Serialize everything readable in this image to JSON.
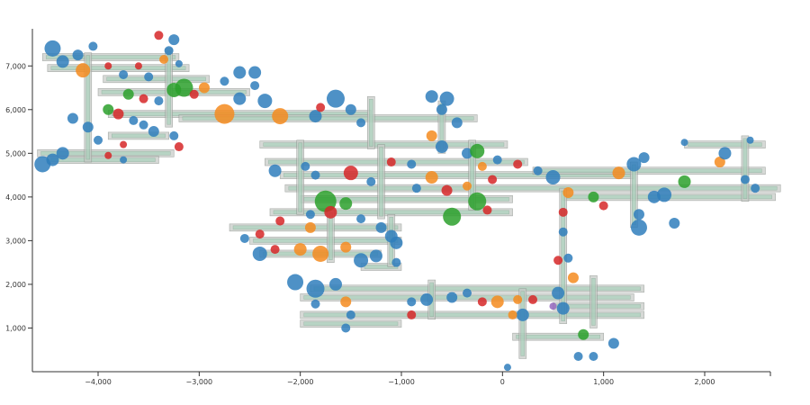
{
  "chart_data": {
    "type": "scatter",
    "title": "",
    "xlabel": "",
    "ylabel": "",
    "xlim": [
      -4650,
      2650
    ],
    "ylim": [
      0,
      7850
    ],
    "x_ticks": [
      {
        "value": -4000,
        "label": "−4,000"
      },
      {
        "value": -3000,
        "label": "−3,000"
      },
      {
        "value": -2000,
        "label": "−2,000"
      },
      {
        "value": -1000,
        "label": "−1,000"
      },
      {
        "value": 0,
        "label": "0"
      },
      {
        "value": 1000,
        "label": "1,000"
      },
      {
        "value": 2000,
        "label": "2,000"
      }
    ],
    "y_ticks": [
      {
        "value": 1000,
        "label": "1,000"
      },
      {
        "value": 2000,
        "label": "2,000"
      },
      {
        "value": 3000,
        "label": "3,000"
      },
      {
        "value": 4000,
        "label": "4,000"
      },
      {
        "value": 5000,
        "label": "5,000"
      },
      {
        "value": 6000,
        "label": "6,000"
      },
      {
        "value": 7000,
        "label": "7,000"
      }
    ],
    "grid": false,
    "colors": {
      "blue": "#2f7ebc",
      "orange": "#f58b1f",
      "green": "#2ca02c",
      "red": "#d62728",
      "purple": "#9467bd"
    },
    "network_segments": [
      {
        "x1": -4550,
        "x2": -3200,
        "y": 7200
      },
      {
        "x1": -4500,
        "x2": -3100,
        "y": 6950
      },
      {
        "x1": -3950,
        "x2": -2900,
        "y": 6700
      },
      {
        "x1": -4000,
        "x2": -2500,
        "y": 6400
      },
      {
        "x1": -3900,
        "x2": -1300,
        "y": 5900
      },
      {
        "x1": -3200,
        "x2": -250,
        "y": 5800
      },
      {
        "x1": -3900,
        "x2": -3300,
        "y": 5400
      },
      {
        "x1": -4600,
        "x2": -3250,
        "y": 5000
      },
      {
        "x1": -4500,
        "x2": -3400,
        "y": 4850
      },
      {
        "x1": -2400,
        "x2": 50,
        "y": 5200
      },
      {
        "x1": -2350,
        "x2": 250,
        "y": 4800
      },
      {
        "x1": -2200,
        "x2": 1300,
        "y": 4500
      },
      {
        "x1": -2150,
        "x2": 2750,
        "y": 4200
      },
      {
        "x1": -2000,
        "x2": 100,
        "y": 3950
      },
      {
        "x1": -2300,
        "x2": 100,
        "y": 3650
      },
      {
        "x1": -2700,
        "x2": -1000,
        "y": 3300
      },
      {
        "x1": -2500,
        "x2": -1000,
        "y": 3000
      },
      {
        "x1": -2400,
        "x2": -1200,
        "y": 2700
      },
      {
        "x1": -1400,
        "x2": -1000,
        "y": 2400
      },
      {
        "x1": -1900,
        "x2": 1400,
        "y": 1900
      },
      {
        "x1": -2000,
        "x2": 1300,
        "y": 1700
      },
      {
        "x1": -2000,
        "x2": 1400,
        "y": 1300
      },
      {
        "x1": -2000,
        "x2": -1000,
        "y": 1100
      },
      {
        "x1": 300,
        "x2": 2600,
        "y": 4600
      },
      {
        "x1": 600,
        "x2": 2700,
        "y": 4000
      },
      {
        "x1": 1800,
        "x2": 2600,
        "y": 5200
      },
      {
        "x1": 500,
        "x2": 1400,
        "y": 1500
      },
      {
        "x1": 100,
        "x2": 1000,
        "y": 800
      }
    ],
    "network_verticals": [
      {
        "x": -4100,
        "y1": 4800,
        "y2": 7300
      },
      {
        "x": -3300,
        "y1": 5600,
        "y2": 7400
      },
      {
        "x": -1300,
        "y1": 5100,
        "y2": 6300
      },
      {
        "x": -600,
        "y1": 5000,
        "y2": 6200
      },
      {
        "x": -2000,
        "y1": 3600,
        "y2": 5300
      },
      {
        "x": -1200,
        "y1": 3500,
        "y2": 5200
      },
      {
        "x": -300,
        "y1": 3700,
        "y2": 5300
      },
      {
        "x": -1700,
        "y1": 2500,
        "y2": 3700
      },
      {
        "x": -1100,
        "y1": 2400,
        "y2": 3600
      },
      {
        "x": -700,
        "y1": 1200,
        "y2": 2100
      },
      {
        "x": 200,
        "y1": 300,
        "y2": 1900
      },
      {
        "x": 600,
        "y1": 1100,
        "y2": 4200
      },
      {
        "x": 900,
        "y1": 1000,
        "y2": 2200
      },
      {
        "x": 1300,
        "y1": 3300,
        "y2": 4800
      },
      {
        "x": 2400,
        "y1": 3900,
        "y2": 5400
      }
    ],
    "points": [
      {
        "x": -4450,
        "y": 7400,
        "r": 9,
        "c": "blue"
      },
      {
        "x": -4350,
        "y": 7100,
        "r": 7,
        "c": "blue"
      },
      {
        "x": -4200,
        "y": 7250,
        "r": 6,
        "c": "blue"
      },
      {
        "x": -4050,
        "y": 7450,
        "r": 5,
        "c": "blue"
      },
      {
        "x": -4150,
        "y": 6900,
        "r": 8,
        "c": "orange"
      },
      {
        "x": -3900,
        "y": 7000,
        "r": 4,
        "c": "red"
      },
      {
        "x": -3750,
        "y": 6800,
        "r": 5,
        "c": "blue"
      },
      {
        "x": -3600,
        "y": 7000,
        "r": 4,
        "c": "red"
      },
      {
        "x": -3500,
        "y": 6750,
        "r": 5,
        "c": "blue"
      },
      {
        "x": -3350,
        "y": 7150,
        "r": 5,
        "c": "orange"
      },
      {
        "x": -3400,
        "y": 7700,
        "r": 5,
        "c": "red"
      },
      {
        "x": -3250,
        "y": 7600,
        "r": 6,
        "c": "blue"
      },
      {
        "x": -3300,
        "y": 7350,
        "r": 5,
        "c": "blue"
      },
      {
        "x": -3200,
        "y": 7050,
        "r": 4,
        "c": "blue"
      },
      {
        "x": -3150,
        "y": 6500,
        "r": 10,
        "c": "green"
      },
      {
        "x": -3250,
        "y": 6450,
        "r": 8,
        "c": "green"
      },
      {
        "x": -3050,
        "y": 6350,
        "r": 5,
        "c": "red"
      },
      {
        "x": -2950,
        "y": 6500,
        "r": 6,
        "c": "orange"
      },
      {
        "x": -2750,
        "y": 6650,
        "r": 5,
        "c": "blue"
      },
      {
        "x": -2600,
        "y": 6850,
        "r": 7,
        "c": "blue"
      },
      {
        "x": -2450,
        "y": 6850,
        "r": 7,
        "c": "blue"
      },
      {
        "x": -2450,
        "y": 6550,
        "r": 5,
        "c": "blue"
      },
      {
        "x": -2600,
        "y": 6250,
        "r": 7,
        "c": "blue"
      },
      {
        "x": -2350,
        "y": 6200,
        "r": 8,
        "c": "blue"
      },
      {
        "x": -3700,
        "y": 6350,
        "r": 6,
        "c": "green"
      },
      {
        "x": -3550,
        "y": 6250,
        "r": 5,
        "c": "red"
      },
      {
        "x": -3400,
        "y": 6200,
        "r": 5,
        "c": "blue"
      },
      {
        "x": -3900,
        "y": 6000,
        "r": 6,
        "c": "green"
      },
      {
        "x": -3800,
        "y": 5900,
        "r": 6,
        "c": "red"
      },
      {
        "x": -3650,
        "y": 5750,
        "r": 5,
        "c": "blue"
      },
      {
        "x": -3550,
        "y": 5650,
        "r": 5,
        "c": "blue"
      },
      {
        "x": -3450,
        "y": 5500,
        "r": 6,
        "c": "blue"
      },
      {
        "x": -3250,
        "y": 5400,
        "r": 5,
        "c": "blue"
      },
      {
        "x": -3200,
        "y": 5150,
        "r": 5,
        "c": "red"
      },
      {
        "x": -4250,
        "y": 5800,
        "r": 6,
        "c": "blue"
      },
      {
        "x": -4100,
        "y": 5600,
        "r": 6,
        "c": "blue"
      },
      {
        "x": -4000,
        "y": 5300,
        "r": 5,
        "c": "blue"
      },
      {
        "x": -3750,
        "y": 5200,
        "r": 4,
        "c": "red"
      },
      {
        "x": -4550,
        "y": 4750,
        "r": 9,
        "c": "blue"
      },
      {
        "x": -4450,
        "y": 4850,
        "r": 7,
        "c": "blue"
      },
      {
        "x": -4350,
        "y": 5000,
        "r": 7,
        "c": "blue"
      },
      {
        "x": -3900,
        "y": 4950,
        "r": 4,
        "c": "red"
      },
      {
        "x": -3750,
        "y": 4850,
        "r": 4,
        "c": "blue"
      },
      {
        "x": -2750,
        "y": 5900,
        "r": 11,
        "c": "orange"
      },
      {
        "x": -2200,
        "y": 5850,
        "r": 9,
        "c": "orange"
      },
      {
        "x": -1850,
        "y": 5850,
        "r": 7,
        "c": "blue"
      },
      {
        "x": -1650,
        "y": 6250,
        "r": 10,
        "c": "blue"
      },
      {
        "x": -1800,
        "y": 6050,
        "r": 5,
        "c": "red"
      },
      {
        "x": -1500,
        "y": 6000,
        "r": 6,
        "c": "blue"
      },
      {
        "x": -1400,
        "y": 5700,
        "r": 5,
        "c": "blue"
      },
      {
        "x": -700,
        "y": 6300,
        "r": 7,
        "c": "blue"
      },
      {
        "x": -550,
        "y": 6250,
        "r": 8,
        "c": "blue"
      },
      {
        "x": -600,
        "y": 6000,
        "r": 6,
        "c": "blue"
      },
      {
        "x": -450,
        "y": 5700,
        "r": 6,
        "c": "blue"
      },
      {
        "x": -700,
        "y": 5400,
        "r": 6,
        "c": "orange"
      },
      {
        "x": -600,
        "y": 5150,
        "r": 7,
        "c": "blue"
      },
      {
        "x": -350,
        "y": 5000,
        "r": 6,
        "c": "blue"
      },
      {
        "x": -250,
        "y": 5050,
        "r": 8,
        "c": "green"
      },
      {
        "x": -50,
        "y": 4850,
        "r": 5,
        "c": "blue"
      },
      {
        "x": -1850,
        "y": 4500,
        "r": 5,
        "c": "blue"
      },
      {
        "x": -1500,
        "y": 4550,
        "r": 8,
        "c": "red"
      },
      {
        "x": -1300,
        "y": 4350,
        "r": 5,
        "c": "blue"
      },
      {
        "x": -2250,
        "y": 4600,
        "r": 7,
        "c": "blue"
      },
      {
        "x": -1950,
        "y": 4700,
        "r": 5,
        "c": "blue"
      },
      {
        "x": -1100,
        "y": 4800,
        "r": 5,
        "c": "red"
      },
      {
        "x": -900,
        "y": 4750,
        "r": 5,
        "c": "blue"
      },
      {
        "x": -700,
        "y": 4450,
        "r": 7,
        "c": "orange"
      },
      {
        "x": -850,
        "y": 4200,
        "r": 5,
        "c": "blue"
      },
      {
        "x": -550,
        "y": 4150,
        "r": 6,
        "c": "red"
      },
      {
        "x": -350,
        "y": 4250,
        "r": 5,
        "c": "orange"
      },
      {
        "x": -250,
        "y": 3900,
        "r": 10,
        "c": "green"
      },
      {
        "x": -500,
        "y": 3550,
        "r": 10,
        "c": "green"
      },
      {
        "x": -150,
        "y": 3700,
        "r": 5,
        "c": "red"
      },
      {
        "x": -1750,
        "y": 3900,
        "r": 12,
        "c": "green"
      },
      {
        "x": -1550,
        "y": 3850,
        "r": 7,
        "c": "green"
      },
      {
        "x": -1700,
        "y": 3650,
        "r": 7,
        "c": "red"
      },
      {
        "x": -1900,
        "y": 3600,
        "r": 5,
        "c": "blue"
      },
      {
        "x": -2200,
        "y": 3450,
        "r": 5,
        "c": "red"
      },
      {
        "x": -1900,
        "y": 3300,
        "r": 6,
        "c": "orange"
      },
      {
        "x": -1400,
        "y": 3500,
        "r": 5,
        "c": "blue"
      },
      {
        "x": -1200,
        "y": 3300,
        "r": 6,
        "c": "blue"
      },
      {
        "x": -1100,
        "y": 3100,
        "r": 7,
        "c": "blue"
      },
      {
        "x": -1050,
        "y": 2950,
        "r": 7,
        "c": "blue"
      },
      {
        "x": -2400,
        "y": 3150,
        "r": 5,
        "c": "red"
      },
      {
        "x": -2550,
        "y": 3050,
        "r": 5,
        "c": "blue"
      },
      {
        "x": -2400,
        "y": 2700,
        "r": 8,
        "c": "blue"
      },
      {
        "x": -2250,
        "y": 2800,
        "r": 5,
        "c": "red"
      },
      {
        "x": -2000,
        "y": 2800,
        "r": 7,
        "c": "orange"
      },
      {
        "x": -1800,
        "y": 2700,
        "r": 9,
        "c": "orange"
      },
      {
        "x": -1550,
        "y": 2850,
        "r": 6,
        "c": "orange"
      },
      {
        "x": -1400,
        "y": 2550,
        "r": 8,
        "c": "blue"
      },
      {
        "x": -1250,
        "y": 2650,
        "r": 7,
        "c": "blue"
      },
      {
        "x": -1050,
        "y": 2500,
        "r": 5,
        "c": "blue"
      },
      {
        "x": -2050,
        "y": 2050,
        "r": 9,
        "c": "blue"
      },
      {
        "x": -1850,
        "y": 1900,
        "r": 10,
        "c": "blue"
      },
      {
        "x": -1650,
        "y": 2000,
        "r": 7,
        "c": "blue"
      },
      {
        "x": -1550,
        "y": 1600,
        "r": 6,
        "c": "orange"
      },
      {
        "x": -1850,
        "y": 1550,
        "r": 5,
        "c": "blue"
      },
      {
        "x": -1500,
        "y": 1300,
        "r": 5,
        "c": "blue"
      },
      {
        "x": -1550,
        "y": 1000,
        "r": 5,
        "c": "blue"
      },
      {
        "x": -900,
        "y": 1600,
        "r": 5,
        "c": "blue"
      },
      {
        "x": -750,
        "y": 1650,
        "r": 7,
        "c": "blue"
      },
      {
        "x": -900,
        "y": 1300,
        "r": 5,
        "c": "red"
      },
      {
        "x": -500,
        "y": 1700,
        "r": 6,
        "c": "blue"
      },
      {
        "x": -350,
        "y": 1800,
        "r": 5,
        "c": "blue"
      },
      {
        "x": -200,
        "y": 1600,
        "r": 5,
        "c": "red"
      },
      {
        "x": -50,
        "y": 1600,
        "r": 7,
        "c": "orange"
      },
      {
        "x": 150,
        "y": 1650,
        "r": 5,
        "c": "orange"
      },
      {
        "x": 200,
        "y": 1300,
        "r": 7,
        "c": "blue"
      },
      {
        "x": 100,
        "y": 1300,
        "r": 5,
        "c": "orange"
      },
      {
        "x": 300,
        "y": 1650,
        "r": 5,
        "c": "red"
      },
      {
        "x": 550,
        "y": 1800,
        "r": 7,
        "c": "blue"
      },
      {
        "x": 600,
        "y": 1450,
        "r": 7,
        "c": "blue"
      },
      {
        "x": 500,
        "y": 1500,
        "r": 4,
        "c": "purple"
      },
      {
        "x": 700,
        "y": 2150,
        "r": 6,
        "c": "orange"
      },
      {
        "x": 550,
        "y": 2550,
        "r": 5,
        "c": "red"
      },
      {
        "x": 650,
        "y": 2600,
        "r": 5,
        "c": "blue"
      },
      {
        "x": 600,
        "y": 3200,
        "r": 5,
        "c": "blue"
      },
      {
        "x": 600,
        "y": 3650,
        "r": 5,
        "c": "red"
      },
      {
        "x": 650,
        "y": 4100,
        "r": 6,
        "c": "orange"
      },
      {
        "x": 500,
        "y": 4450,
        "r": 8,
        "c": "blue"
      },
      {
        "x": 900,
        "y": 4000,
        "r": 6,
        "c": "green"
      },
      {
        "x": 1000,
        "y": 3800,
        "r": 5,
        "c": "red"
      },
      {
        "x": 1150,
        "y": 4550,
        "r": 7,
        "c": "orange"
      },
      {
        "x": 1300,
        "y": 4750,
        "r": 8,
        "c": "blue"
      },
      {
        "x": 1400,
        "y": 4900,
        "r": 6,
        "c": "blue"
      },
      {
        "x": 1500,
        "y": 4000,
        "r": 7,
        "c": "blue"
      },
      {
        "x": 1600,
        "y": 4050,
        "r": 8,
        "c": "blue"
      },
      {
        "x": 1350,
        "y": 3600,
        "r": 6,
        "c": "blue"
      },
      {
        "x": 1350,
        "y": 3300,
        "r": 9,
        "c": "blue"
      },
      {
        "x": 1700,
        "y": 3400,
        "r": 6,
        "c": "blue"
      },
      {
        "x": 1800,
        "y": 4350,
        "r": 7,
        "c": "green"
      },
      {
        "x": 2150,
        "y": 4800,
        "r": 6,
        "c": "orange"
      },
      {
        "x": 2200,
        "y": 5000,
        "r": 7,
        "c": "blue"
      },
      {
        "x": 2400,
        "y": 4400,
        "r": 5,
        "c": "blue"
      },
      {
        "x": 2500,
        "y": 4200,
        "r": 5,
        "c": "blue"
      },
      {
        "x": 1800,
        "y": 5250,
        "r": 4,
        "c": "blue"
      },
      {
        "x": 2450,
        "y": 5300,
        "r": 4,
        "c": "blue"
      },
      {
        "x": -200,
        "y": 4700,
        "r": 5,
        "c": "orange"
      },
      {
        "x": 150,
        "y": 4750,
        "r": 5,
        "c": "red"
      },
      {
        "x": 350,
        "y": 4600,
        "r": 5,
        "c": "blue"
      },
      {
        "x": -100,
        "y": 4400,
        "r": 5,
        "c": "red"
      },
      {
        "x": 800,
        "y": 850,
        "r": 6,
        "c": "green"
      },
      {
        "x": 750,
        "y": 350,
        "r": 5,
        "c": "blue"
      },
      {
        "x": 900,
        "y": 350,
        "r": 5,
        "c": "blue"
      },
      {
        "x": 1100,
        "y": 650,
        "r": 6,
        "c": "blue"
      },
      {
        "x": 50,
        "y": 100,
        "r": 4,
        "c": "blue"
      }
    ]
  }
}
